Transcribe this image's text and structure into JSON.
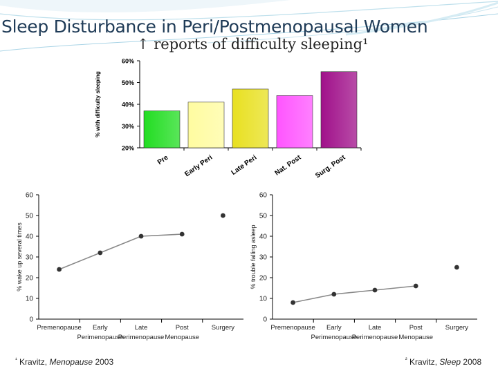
{
  "header": {
    "title": "Sleep Disturbance in Peri/Postmenopausal Women",
    "subtitle": "↑ reports of difficulty sleeping¹"
  },
  "footnotes": {
    "left": {
      "mark": "¹",
      "author": "Kravitz,",
      "journal": "Menopause",
      "year": "2003"
    },
    "right": {
      "mark": "²",
      "author": "Kravitz,",
      "journal": "Sleep",
      "year": "2008"
    }
  },
  "colors": {
    "title": "#1f3b57",
    "bar_pre": "#22dd22",
    "bar_early": "#fffca0",
    "bar_late": "#e8e020",
    "bar_nat": "#ff55ff",
    "bar_surg": "#a0108a"
  },
  "chart_data": [
    {
      "type": "bar",
      "categories": [
        "Pre",
        "Early Peri",
        "Late Peri",
        "Nat. Post",
        "Surg. Post"
      ],
      "values": [
        37,
        41,
        47,
        44,
        55
      ],
      "ylabel": "% with difficulty sleeping",
      "yticks": [
        "20%",
        "30%",
        "40%",
        "50%",
        "60%"
      ],
      "ylim": [
        20,
        60
      ],
      "grid": false
    },
    {
      "type": "line",
      "categories": [
        "Premenopause",
        "Early Perimenopause",
        "Late Perimenopause",
        "Post Menopause",
        "Surgery"
      ],
      "category_lines": [
        [
          "Premenopause"
        ],
        [
          "Early",
          "Perimenopause"
        ],
        [
          "Late",
          "Perimenopause"
        ],
        [
          "Post",
          "Menopause"
        ],
        [
          "Surgery"
        ]
      ],
      "values": [
        24,
        32,
        40,
        41,
        50
      ],
      "connected_points": 4,
      "ylabel": "% wake up several times",
      "yticks": [
        "0",
        "10",
        "20",
        "30",
        "40",
        "50",
        "60"
      ],
      "ylim": [
        0,
        60
      ],
      "grid": false
    },
    {
      "type": "line",
      "categories": [
        "Premenopause",
        "Early Perimenopause",
        "Late Perimenopause",
        "Post Menopause",
        "Surgery"
      ],
      "category_lines": [
        [
          "Premenopause"
        ],
        [
          "Early",
          "Perimenopause"
        ],
        [
          "Late",
          "Perimenopause"
        ],
        [
          "Post",
          "Menopause"
        ],
        [
          "Surgery"
        ]
      ],
      "values": [
        8,
        12,
        14,
        16,
        25
      ],
      "connected_points": 4,
      "ylabel": "% trouble falling asleep",
      "yticks": [
        "0",
        "10",
        "20",
        "30",
        "40",
        "50",
        "60"
      ],
      "ylim": [
        0,
        60
      ],
      "grid": false
    }
  ]
}
